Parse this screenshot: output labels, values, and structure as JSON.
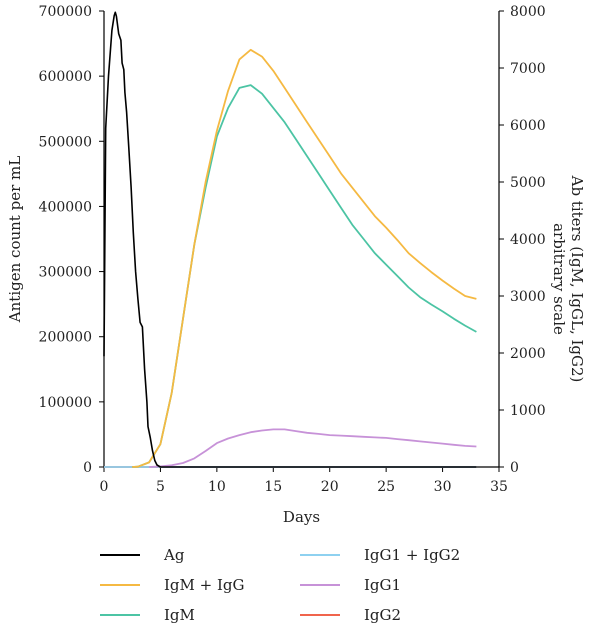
{
  "chart_data": {
    "type": "line",
    "xlabel": "Days",
    "ylabel_left": "Antigen count per mL",
    "ylabel_right_line1": "Ab titers (IgM, IgGL, IgG2)",
    "ylabel_right_line2": "arbitrary scale",
    "xlim": [
      0,
      35
    ],
    "ylim_left": [
      0,
      700000
    ],
    "ylim_right": [
      0,
      8000
    ],
    "x_ticks": [
      "0",
      "5",
      "10",
      "15",
      "20",
      "25",
      "30",
      "35"
    ],
    "y_left_ticks": [
      "0",
      "100000",
      "200000",
      "300000",
      "400000",
      "500000",
      "600000",
      "700000"
    ],
    "y_right_ticks": [
      "0",
      "1000",
      "2000",
      "3000",
      "4000",
      "5000",
      "6000",
      "7000",
      "8000"
    ],
    "grid": false,
    "legend_position": "bottom",
    "series": [
      {
        "name": "Ag",
        "axis": "left",
        "color": "#000000",
        "points": [
          [
            0,
            170000
          ],
          [
            0.15,
            520000
          ],
          [
            0.4,
            600000
          ],
          [
            0.7,
            670000
          ],
          [
            0.9,
            693000
          ],
          [
            1.0,
            698000
          ],
          [
            1.1,
            692000
          ],
          [
            1.3,
            665000
          ],
          [
            1.5,
            655000
          ],
          [
            1.6,
            620000
          ],
          [
            1.75,
            610000
          ],
          [
            1.85,
            575000
          ],
          [
            2.0,
            545000
          ],
          [
            2.2,
            490000
          ],
          [
            2.4,
            430000
          ],
          [
            2.6,
            360000
          ],
          [
            2.8,
            300000
          ],
          [
            3.0,
            258000
          ],
          [
            3.2,
            222000
          ],
          [
            3.4,
            215000
          ],
          [
            3.6,
            150000
          ],
          [
            3.8,
            100000
          ],
          [
            3.9,
            62000
          ],
          [
            4.1,
            45000
          ],
          [
            4.3,
            25000
          ],
          [
            4.5,
            10000
          ],
          [
            4.7,
            3000
          ],
          [
            5.0,
            0
          ],
          [
            6,
            0
          ],
          [
            10,
            0
          ],
          [
            20,
            0
          ],
          [
            33,
            0
          ]
        ]
      },
      {
        "name": "IgM + IgG",
        "axis": "right",
        "color": "#F5B942",
        "points": [
          [
            2.5,
            0
          ],
          [
            3,
            5
          ],
          [
            4,
            80
          ],
          [
            5,
            400
          ],
          [
            6,
            1300
          ],
          [
            7,
            2600
          ],
          [
            8,
            3900
          ],
          [
            9,
            5000
          ],
          [
            10,
            5900
          ],
          [
            11,
            6600
          ],
          [
            12,
            7150
          ],
          [
            13,
            7320
          ],
          [
            14,
            7200
          ],
          [
            15,
            6950
          ],
          [
            16,
            6650
          ],
          [
            17,
            6350
          ],
          [
            18,
            6050
          ],
          [
            19,
            5750
          ],
          [
            20,
            5450
          ],
          [
            21,
            5150
          ],
          [
            22,
            4900
          ],
          [
            23,
            4650
          ],
          [
            24,
            4400
          ],
          [
            25,
            4200
          ],
          [
            26,
            3980
          ],
          [
            27,
            3750
          ],
          [
            28,
            3580
          ],
          [
            29,
            3420
          ],
          [
            30,
            3270
          ],
          [
            31,
            3130
          ],
          [
            32,
            3000
          ],
          [
            33,
            2950
          ]
        ]
      },
      {
        "name": "IgG1 + IgG2",
        "axis": "right",
        "color": "#8ED1F0",
        "points": [
          [
            0,
            0
          ],
          [
            33,
            0
          ]
        ]
      },
      {
        "name": "IgM",
        "axis": "right",
        "color": "#4CC4A4",
        "points": [
          [
            2.5,
            0
          ],
          [
            3,
            5
          ],
          [
            4,
            80
          ],
          [
            5,
            400
          ],
          [
            6,
            1300
          ],
          [
            7,
            2600
          ],
          [
            8,
            3900
          ],
          [
            9,
            4900
          ],
          [
            10,
            5800
          ],
          [
            11,
            6300
          ],
          [
            12,
            6650
          ],
          [
            13,
            6700
          ],
          [
            14,
            6550
          ],
          [
            15,
            6300
          ],
          [
            16,
            6050
          ],
          [
            17,
            5750
          ],
          [
            18,
            5450
          ],
          [
            19,
            5150
          ],
          [
            20,
            4850
          ],
          [
            21,
            4550
          ],
          [
            22,
            4250
          ],
          [
            23,
            4000
          ],
          [
            24,
            3750
          ],
          [
            25,
            3550
          ],
          [
            26,
            3350
          ],
          [
            27,
            3150
          ],
          [
            28,
            2980
          ],
          [
            29,
            2850
          ],
          [
            30,
            2730
          ],
          [
            31,
            2600
          ],
          [
            32,
            2480
          ],
          [
            33,
            2370
          ]
        ]
      },
      {
        "name": "IgG1",
        "axis": "right",
        "color": "#C792D8",
        "points": [
          [
            4,
            0
          ],
          [
            5,
            10
          ],
          [
            6,
            30
          ],
          [
            7,
            70
          ],
          [
            8,
            150
          ],
          [
            9,
            280
          ],
          [
            10,
            420
          ],
          [
            11,
            500
          ],
          [
            12,
            560
          ],
          [
            13,
            610
          ],
          [
            14,
            640
          ],
          [
            15,
            660
          ],
          [
            16,
            660
          ],
          [
            17,
            630
          ],
          [
            18,
            600
          ],
          [
            19,
            580
          ],
          [
            20,
            560
          ],
          [
            21,
            550
          ],
          [
            22,
            540
          ],
          [
            23,
            530
          ],
          [
            24,
            520
          ],
          [
            25,
            510
          ],
          [
            26,
            490
          ],
          [
            27,
            470
          ],
          [
            28,
            450
          ],
          [
            29,
            430
          ],
          [
            30,
            410
          ],
          [
            31,
            390
          ],
          [
            32,
            370
          ],
          [
            33,
            360
          ]
        ]
      },
      {
        "name": "IgG2",
        "axis": "right",
        "color": "#F0644C",
        "points": [
          [
            0,
            0
          ],
          [
            33,
            0
          ]
        ]
      }
    ]
  }
}
